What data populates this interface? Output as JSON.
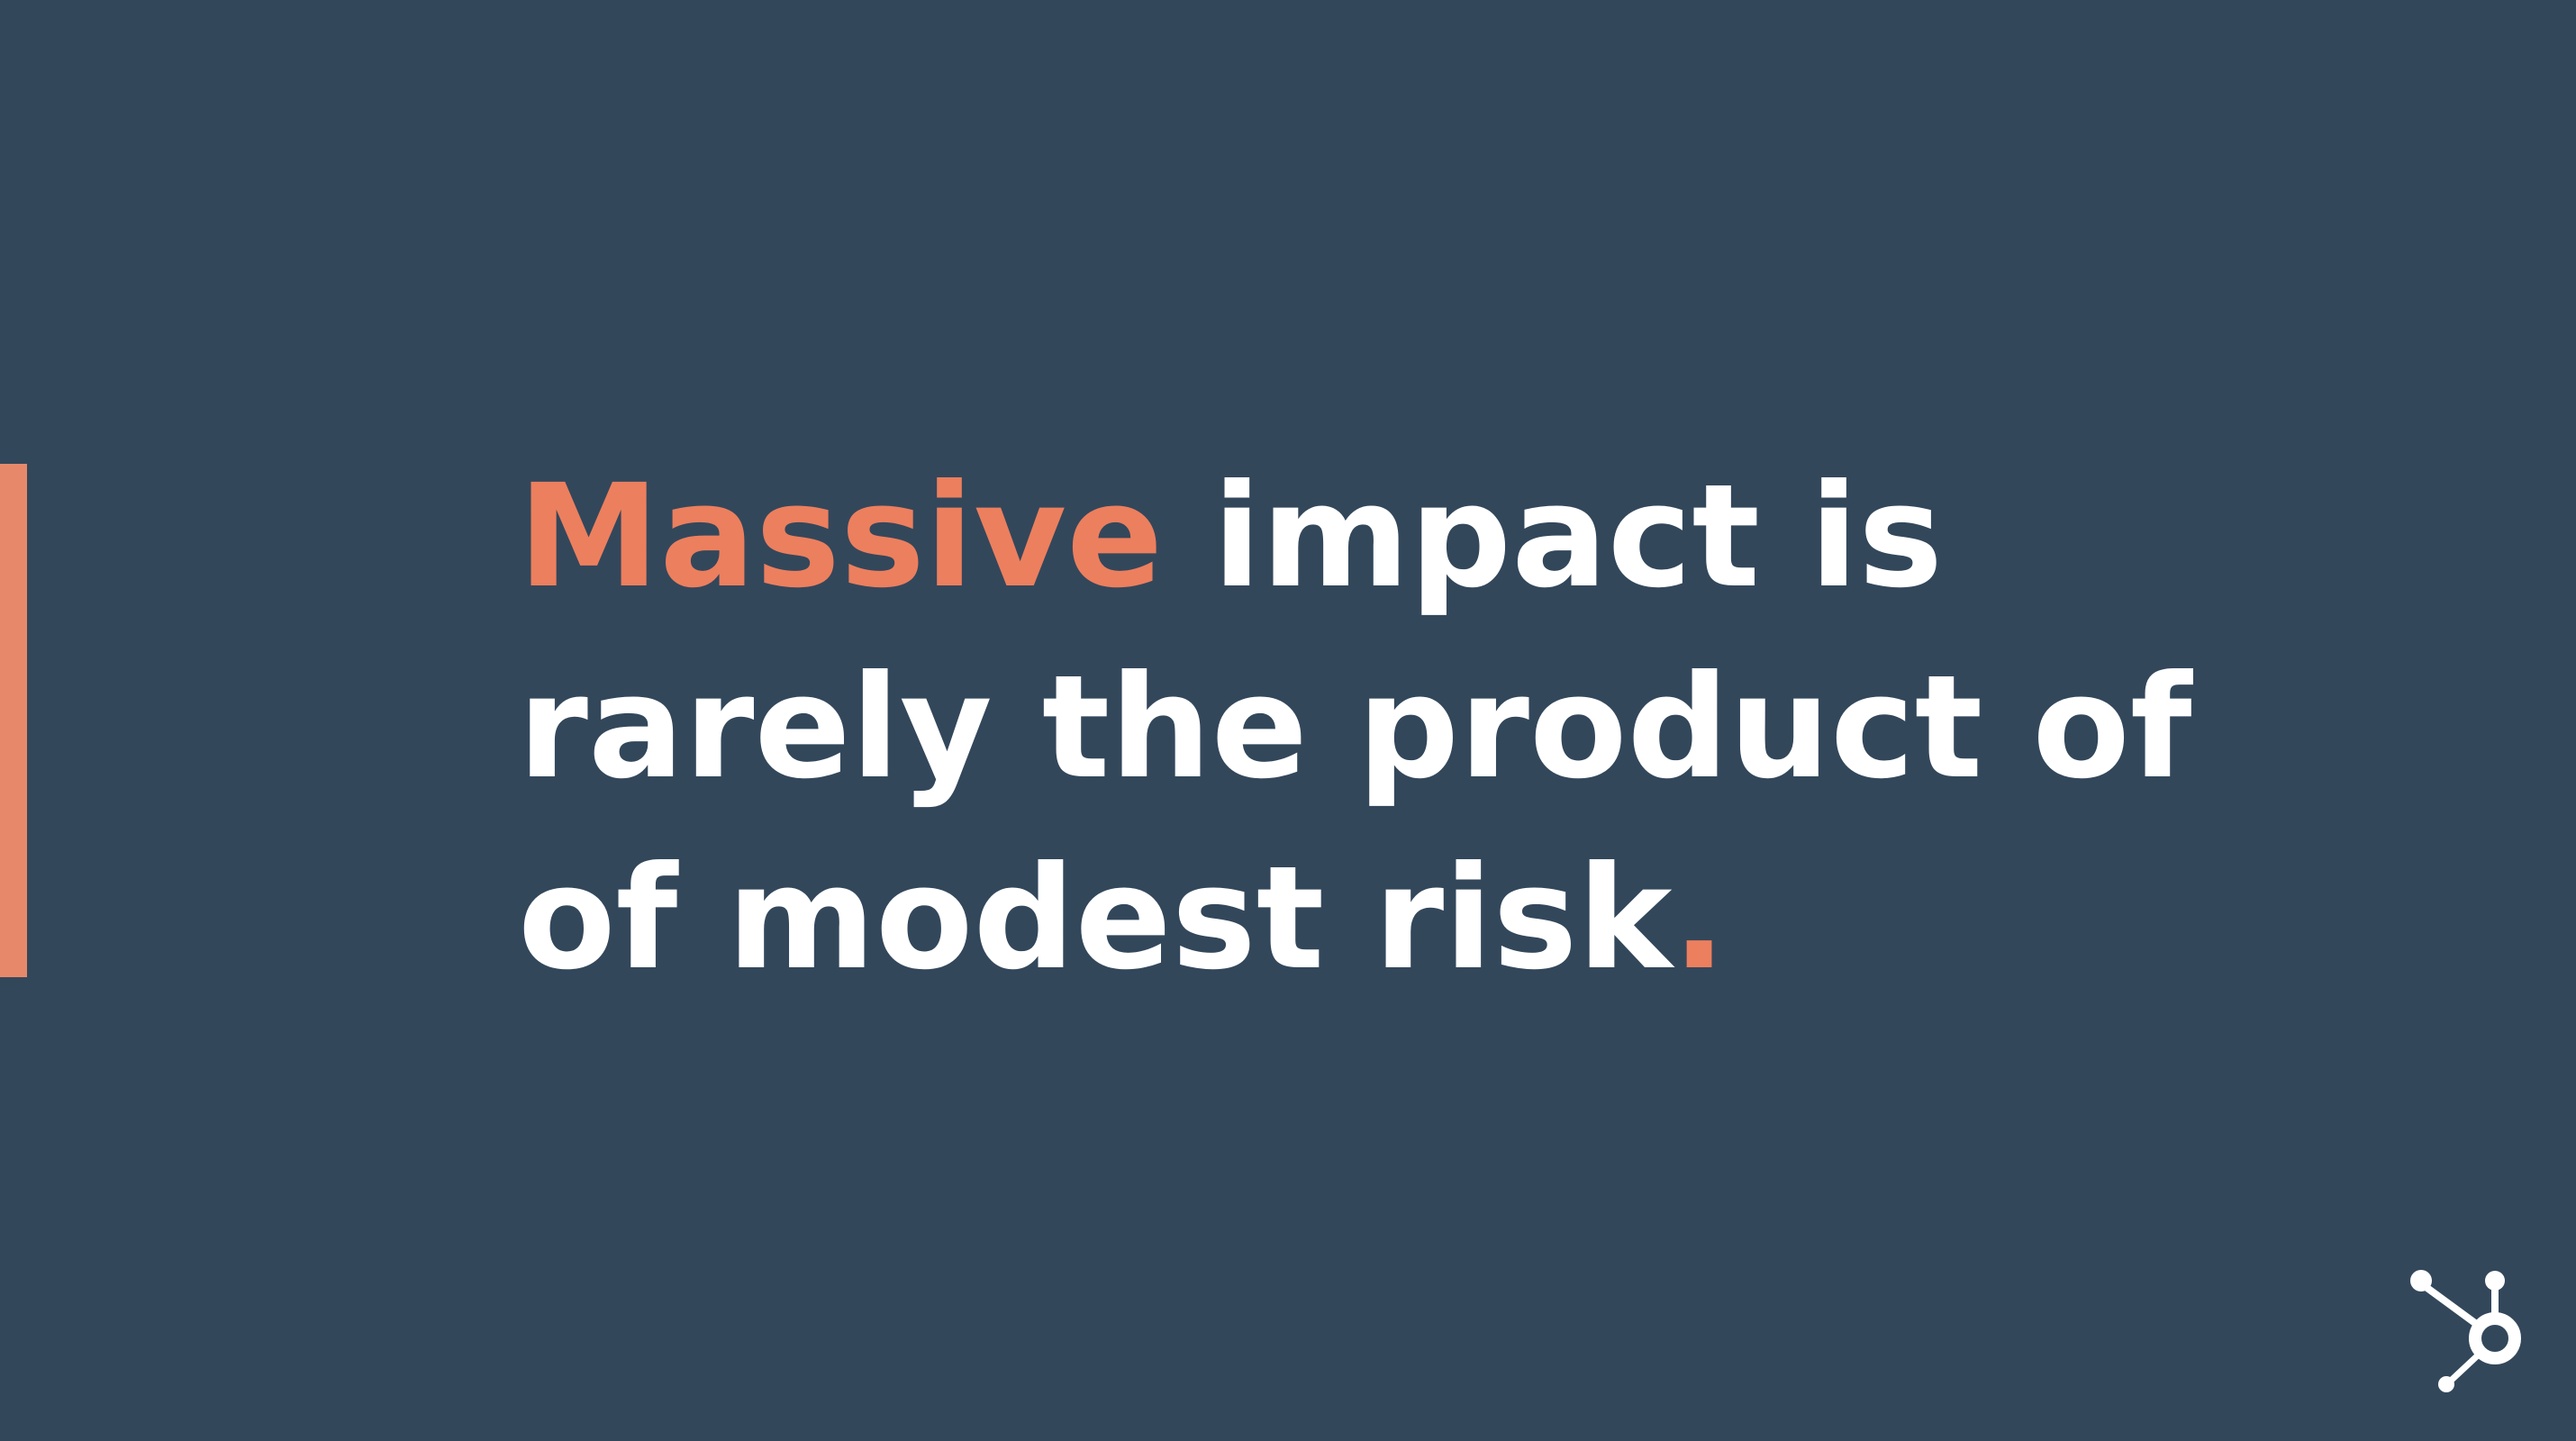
{
  "quote": {
    "line1_highlight": "Massive",
    "line1_rest": " impact is",
    "line2": "rarely the product of",
    "line3_text": "of modest risk",
    "line3_end": "."
  },
  "colors": {
    "background": "#33475b",
    "accent": "#ec7f5e",
    "bar": "#e8886b",
    "text": "#ffffff"
  },
  "logo": {
    "icon": "hubspot-sprocket-icon"
  }
}
